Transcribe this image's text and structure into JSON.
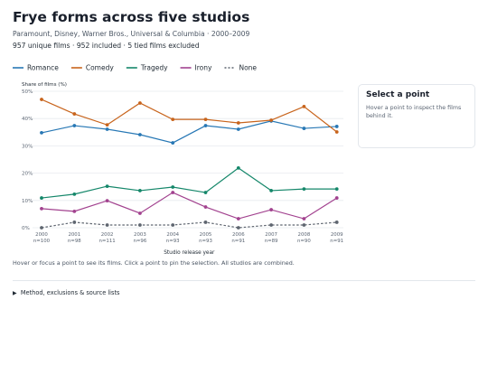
{
  "chart_data": {
    "type": "line",
    "title": "Frye forms across five studios",
    "subtitle": "Paramount, Disney, Warner Bros., Universal & Columbia · 2000–2009",
    "stats": "957 unique films · 952 included · 5 tied films excluded",
    "y_label": "Share of films (%)",
    "x_label": "Studio release year",
    "categories": [
      "2000",
      "2001",
      "2002",
      "2003",
      "2004",
      "2005",
      "2006",
      "2007",
      "2008",
      "2009"
    ],
    "n_labels": [
      "n=100",
      "n=98",
      "n=111",
      "n=96",
      "n=93",
      "n=93",
      "n=91",
      "n=89",
      "n=90",
      "n=91"
    ],
    "ylim": [
      0,
      50
    ],
    "yticks": [
      {
        "value": 0,
        "label": "0%"
      },
      {
        "value": 10,
        "label": "10%"
      },
      {
        "value": 20,
        "label": "20%"
      },
      {
        "value": 30,
        "label": "30%"
      },
      {
        "value": 40,
        "label": "40%"
      },
      {
        "value": 50,
        "label": "50%"
      }
    ],
    "grid": true,
    "series": [
      {
        "name": "Romance",
        "color": "#2878b5",
        "values": [
          34.8,
          37.4,
          36.1,
          34.1,
          31.1,
          37.4,
          36.1,
          39.1,
          36.4,
          37.1
        ]
      },
      {
        "name": "Comedy",
        "color": "#c8641c",
        "values": [
          47.0,
          41.7,
          37.7,
          45.7,
          39.7,
          39.7,
          38.4,
          39.4,
          44.4,
          35.1
        ]
      },
      {
        "name": "Tragedy",
        "color": "#15876a",
        "values": [
          10.9,
          12.3,
          15.2,
          13.6,
          14.9,
          12.9,
          21.9,
          13.6,
          14.2,
          14.2
        ]
      },
      {
        "name": "Irony",
        "color": "#a2428f",
        "values": [
          7.0,
          6.0,
          9.9,
          5.3,
          12.9,
          7.6,
          3.3,
          6.6,
          3.3,
          10.9
        ]
      },
      {
        "name": "None",
        "color": "#5f6670",
        "dashed": true,
        "values": [
          0,
          2,
          1,
          1,
          1,
          2,
          0,
          1,
          1,
          2
        ]
      }
    ]
  },
  "panel": {
    "title": "Select a point",
    "text": "Hover a point to inspect the films behind it."
  },
  "hint": "Hover or focus a point to see its films. Click a point to pin the selection. All studios are combined.",
  "details": "Method, exclusions & source lists"
}
